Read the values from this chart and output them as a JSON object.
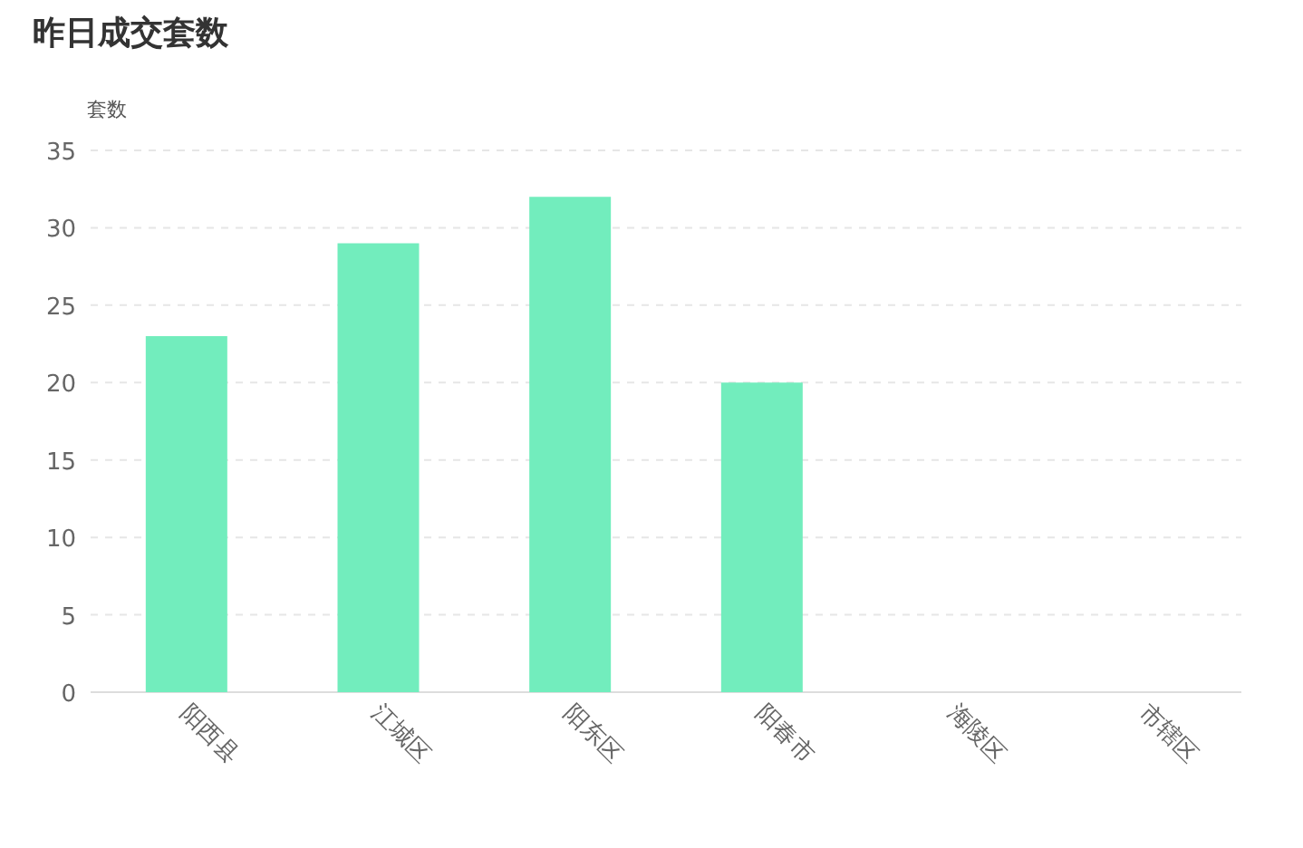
{
  "chart_data": {
    "type": "bar",
    "title": "昨日成交套数",
    "ylabel": "套数",
    "categories": [
      "阳西县",
      "江城区",
      "阳东区",
      "阳春市",
      "海陵区",
      "市辖区"
    ],
    "values": [
      23,
      29,
      32,
      20,
      0,
      0
    ],
    "color": "#72edbd",
    "ylim": [
      0,
      35
    ],
    "yticks": [
      0,
      5,
      10,
      15,
      20,
      25,
      30,
      35
    ],
    "grid": "y"
  }
}
